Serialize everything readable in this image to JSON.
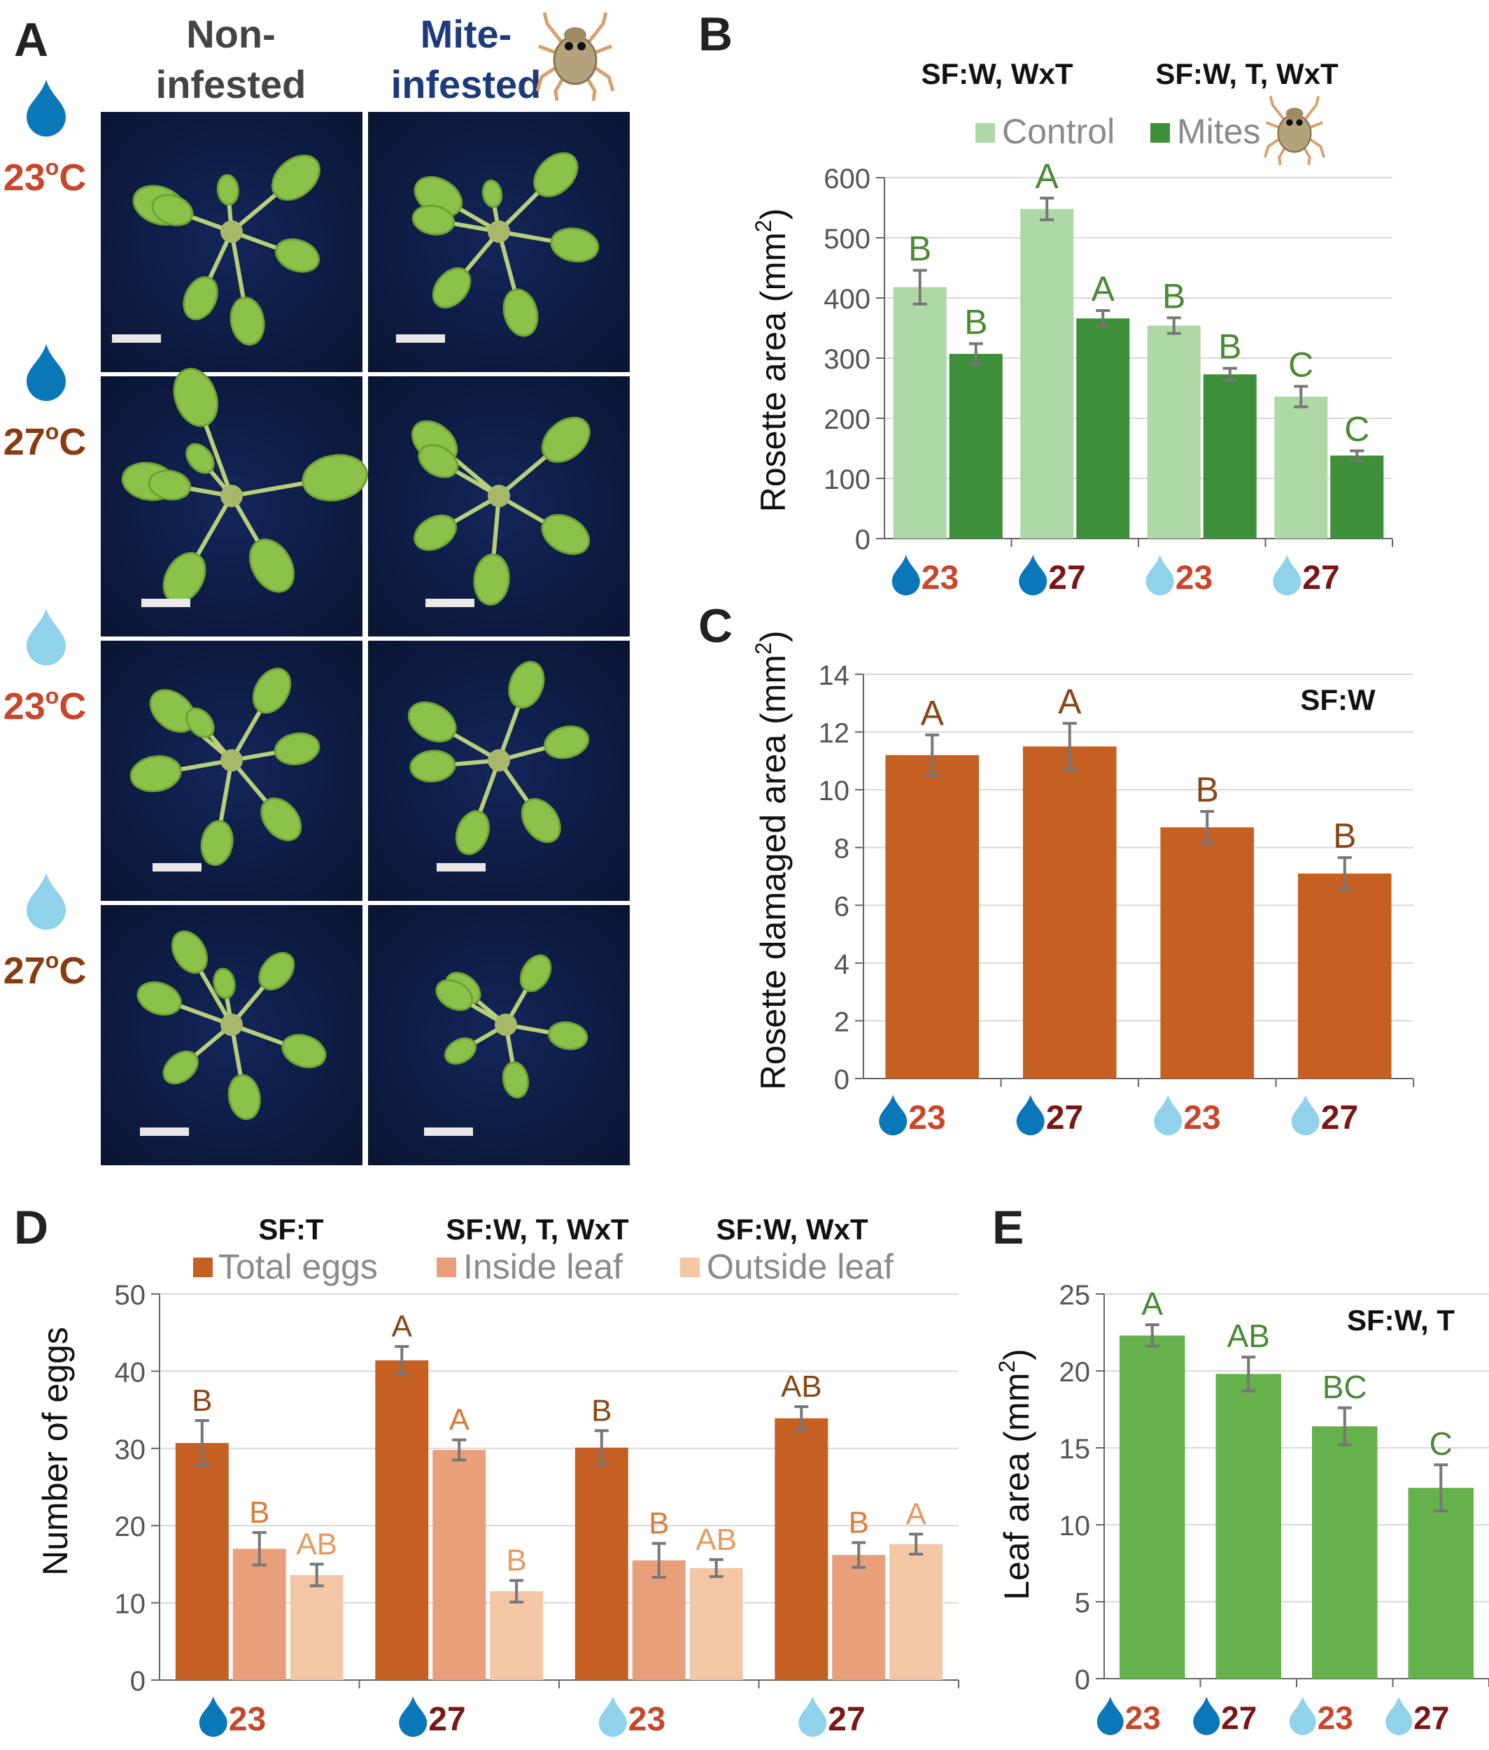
{
  "panel_a": {
    "label": "A",
    "col_headers": [
      {
        "line1": "Non-",
        "line2": "infested"
      },
      {
        "line1": "Mite-",
        "line2": "infested"
      }
    ],
    "rows": [
      {
        "label": "23",
        "unit": "°C",
        "water": "high"
      },
      {
        "label": "27",
        "unit": "°C",
        "water": "high"
      },
      {
        "label": "23",
        "unit": "°C",
        "water": "low"
      },
      {
        "label": "27",
        "unit": "°C",
        "water": "low"
      }
    ],
    "o_superscript": "o"
  },
  "xgroups": [
    {
      "water": "high",
      "temp": "23"
    },
    {
      "water": "high",
      "temp": "27"
    },
    {
      "water": "low",
      "temp": "23"
    },
    {
      "water": "low",
      "temp": "27"
    }
  ],
  "colors": {
    "dark_water": "#0a78b8",
    "light_water": "#8fd2ea",
    "temp23": "#c8462a",
    "temp27": "#7a1616",
    "b_control": "#aed8a6",
    "b_mites": "#3d8f3a",
    "b_letters": "#4a8a36",
    "c_bar": "#c55f22",
    "c_letters": "#8a4614",
    "d_total": "#c55f22",
    "d_inside": "#e9a07a",
    "d_outside": "#f3c6a6",
    "e_bar": "#65b24c",
    "e_letters": "#4a8a36"
  },
  "chart_data": [
    {
      "panel": "B",
      "type": "bar",
      "ylabel": "Rosette area (mm",
      "ylabel_sup": "2",
      "ylabel_end": ")",
      "ylim": [
        0,
        600
      ],
      "yticks": [
        0,
        100,
        200,
        300,
        400,
        500,
        600
      ],
      "stats": [
        "SF:W, WxT",
        "SF:W, T, WxT"
      ],
      "series": [
        {
          "name": "Control",
          "values": [
            418,
            548,
            354,
            236
          ],
          "errors": [
            28,
            18,
            13,
            17
          ],
          "letters": [
            "B",
            "A",
            "B",
            "C"
          ]
        },
        {
          "name": "Mites",
          "values": [
            307,
            366,
            273,
            138
          ],
          "errors": [
            17,
            13,
            10,
            8
          ],
          "letters": [
            "B",
            "A",
            "B",
            "C"
          ]
        }
      ]
    },
    {
      "panel": "C",
      "type": "bar",
      "ylabel": "Rosette damaged area (mm",
      "ylabel_sup": "2",
      "ylabel_end": ")",
      "ylim": [
        0,
        14
      ],
      "yticks": [
        0,
        2,
        4,
        6,
        8,
        10,
        12,
        14
      ],
      "stats": [
        "SF:W"
      ],
      "series": [
        {
          "values": [
            11.2,
            11.5,
            8.7,
            7.1
          ],
          "errors": [
            0.7,
            0.8,
            0.55,
            0.55
          ],
          "letters": [
            "A",
            "A",
            "B",
            "B"
          ]
        }
      ]
    },
    {
      "panel": "D",
      "type": "bar",
      "ylabel": "Number of eggs",
      "ylim": [
        0,
        50
      ],
      "yticks": [
        0,
        10,
        20,
        30,
        40,
        50
      ],
      "stats": [
        "SF:T",
        "SF:W, T, WxT",
        "SF:W, WxT"
      ],
      "series": [
        {
          "name": "Total eggs",
          "values": [
            30.7,
            41.4,
            30.1,
            33.9
          ],
          "errors": [
            2.9,
            1.8,
            2.2,
            1.5
          ],
          "letters": [
            "B",
            "A",
            "B",
            "AB"
          ]
        },
        {
          "name": "Inside leaf",
          "values": [
            17.0,
            29.8,
            15.5,
            16.2
          ],
          "errors": [
            2.1,
            1.3,
            2.2,
            1.6
          ],
          "letters": [
            "B",
            "A",
            "B",
            "B"
          ]
        },
        {
          "name": "Outside leaf",
          "values": [
            13.6,
            11.5,
            14.5,
            17.6
          ],
          "errors": [
            1.4,
            1.4,
            1.1,
            1.3
          ],
          "letters": [
            "AB",
            "B",
            "AB",
            "A"
          ]
        }
      ]
    },
    {
      "panel": "E",
      "type": "bar",
      "ylabel": "Leaf area (mm",
      "ylabel_sup": "2",
      "ylabel_end": ")",
      "ylim": [
        0,
        25
      ],
      "yticks": [
        0,
        5,
        10,
        15,
        20,
        25
      ],
      "stats": [
        "SF:W, T"
      ],
      "series": [
        {
          "values": [
            22.3,
            19.8,
            16.4,
            12.4
          ],
          "errors": [
            0.7,
            1.1,
            1.2,
            1.5
          ],
          "letters": [
            "A",
            "AB",
            "BC",
            "C"
          ]
        }
      ]
    }
  ]
}
